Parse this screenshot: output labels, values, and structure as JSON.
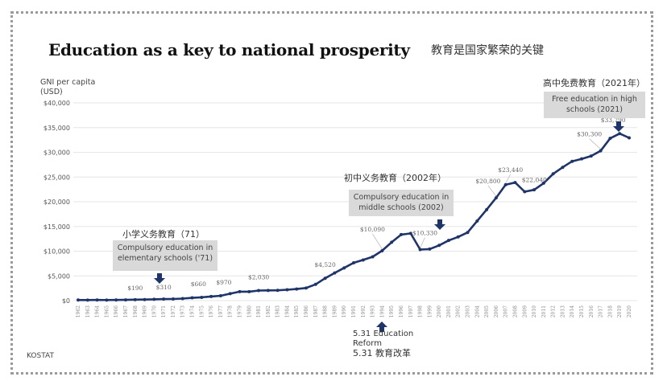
{
  "page": {
    "title": "Education as a key to national prosperity",
    "title_cn": "教育是国家繁荣的关键",
    "source": "KOSTAT"
  },
  "annotations": {
    "elementary_cn": "小学义务教育（71）",
    "elementary_en": "Compulsory education in elementary schools ('71)",
    "middle_cn": "初中义务教育（2002年）",
    "middle_en": "Compulsory education in middle schools (2002)",
    "high_cn": "高中免费教育（2021年）",
    "high_en": "Free education in high schools (2021)",
    "reform_en": "5.31 Education Reform",
    "reform_cn": "5.31 教育改革"
  },
  "chart_data": {
    "type": "line",
    "title": "Education as a key to national prosperity",
    "xlabel": "",
    "ylabel": "GNI per capita (USD)",
    "ylim": [
      0,
      40000
    ],
    "yticks": [
      "$0",
      "$5,000",
      "$10,000",
      "$15,000",
      "$20,000",
      "$25,000",
      "$30,000",
      "$35,000",
      "$40,000"
    ],
    "grid": true,
    "series_color": "#1f3468",
    "x": [
      1962,
      1963,
      1964,
      1965,
      1966,
      1967,
      1968,
      1969,
      1970,
      1971,
      1972,
      1973,
      1974,
      1975,
      1976,
      1977,
      1978,
      1979,
      1980,
      1981,
      1982,
      1983,
      1984,
      1985,
      1986,
      1987,
      1988,
      1989,
      1990,
      1991,
      1992,
      1993,
      1994,
      1995,
      1996,
      1997,
      1998,
      1999,
      2000,
      2001,
      2002,
      2003,
      2004,
      2005,
      2006,
      2007,
      2008,
      2009,
      2010,
      2011,
      2012,
      2013,
      2014,
      2015,
      2016,
      2017,
      2018,
      2019,
      2020
    ],
    "series": [
      {
        "name": "GNI per capita (USD)",
        "values": [
          120,
          110,
          130,
          110,
          130,
          150,
          190,
          210,
          260,
          310,
          330,
          410,
          560,
          660,
          830,
          970,
          1400,
          1800,
          1810,
          2030,
          2060,
          2080,
          2190,
          2340,
          2550,
          3290,
          4520,
          5590,
          6610,
          7640,
          8220,
          8860,
          10090,
          11800,
          13350,
          13600,
          10330,
          10420,
          11170,
          12170,
          12880,
          13790,
          16100,
          18400,
          20800,
          23440,
          23890,
          22040,
          22410,
          23760,
          25650,
          26960,
          28180,
          28670,
          29250,
          30300,
          32820,
          33790,
          32930
        ]
      }
    ],
    "data_labels": [
      {
        "x": 1968,
        "label": "$190"
      },
      {
        "x": 1971,
        "label": "$310"
      },
      {
        "x": 1975,
        "label": "$660"
      },
      {
        "x": 1977,
        "label": "$970"
      },
      {
        "x": 1981,
        "label": "$2,030"
      },
      {
        "x": 1988,
        "label": "$4,520"
      },
      {
        "x": 1994,
        "label": "$10,090"
      },
      {
        "x": 1998,
        "label": "$10,330"
      },
      {
        "x": 2006,
        "label": "$20,800"
      },
      {
        "x": 2007,
        "label": "$23,440"
      },
      {
        "x": 2009,
        "label": "$22,040"
      },
      {
        "x": 2017,
        "label": "$30,300"
      },
      {
        "x": 2019,
        "label": "$33,790"
      }
    ]
  }
}
